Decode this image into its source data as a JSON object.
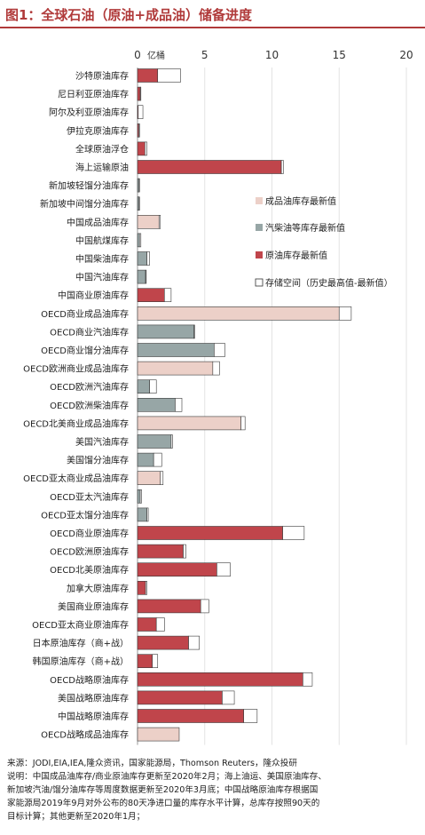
{
  "header": {
    "title": "图1：全球石油（原油+成品油）储备进度"
  },
  "chart_data": {
    "type": "bar",
    "orientation": "horizontal",
    "stacked": true,
    "unit": "亿桶",
    "xlim": [
      0,
      20
    ],
    "xticks": [
      "0",
      "5",
      "10",
      "15",
      "20"
    ],
    "legend_position": "right",
    "categories": [
      "沙特原油库存",
      "尼日利亚原油库存",
      "阿尔及利亚原油库存",
      "伊拉克原油库存",
      "全球原油浮仓",
      "海上运输原油",
      "新加坡轻馏分油库存",
      "新加坡中间馏分油库存",
      "中国成品油库存",
      "中国航煤库存",
      "中国柴油库存",
      "中国汽油库存",
      "中国商业原油库存",
      "OECD商业成品油库存",
      "OECD商业汽油库存",
      "OECD商业馏分油库存",
      "OECD欧洲商业成品油库存",
      "OECD欧洲汽油库存",
      "OECD欧洲柴油库存",
      "OECD北美商业成品油库存",
      "美国汽油库存",
      "美国馏分油库存",
      "OECD亚太商业成品油库存",
      "OECD亚太汽油库存",
      "OECD亚太馏分油库存",
      "OECD商业原油库存",
      "OECD欧洲原油库存",
      "OECD北美原油库存",
      "加拿大原油库存",
      "美国商业原油库存",
      "OECD亚太商业原油库存",
      "日本原油库存（商+战）",
      "韩国原油库存（商+战）",
      "OECD战略原油库存",
      "美国战略原油库存",
      "中国战略原油库存",
      "OECD战略成品油库存"
    ],
    "kinds": [
      "crude",
      "crude",
      "crude",
      "crude",
      "crude",
      "crude",
      "diesel",
      "diesel",
      "product",
      "diesel",
      "diesel",
      "diesel",
      "crude",
      "product",
      "diesel",
      "diesel",
      "product",
      "diesel",
      "diesel",
      "product",
      "diesel",
      "diesel",
      "product",
      "diesel",
      "diesel",
      "crude",
      "crude",
      "crude",
      "crude",
      "crude",
      "crude",
      "crude",
      "crude",
      "crude",
      "crude",
      "crude",
      "product"
    ],
    "series": [
      {
        "key": "latest",
        "values": [
          1.5,
          0.2,
          0.05,
          0.1,
          0.55,
          10.7,
          0.1,
          0.1,
          1.6,
          0.15,
          0.7,
          0.6,
          2.0,
          15.0,
          4.2,
          5.7,
          5.6,
          0.9,
          2.8,
          7.7,
          2.5,
          1.2,
          1.7,
          0.2,
          0.7,
          10.8,
          3.4,
          5.9,
          0.6,
          4.7,
          1.4,
          3.8,
          1.1,
          12.3,
          6.3,
          7.9,
          3.1
        ]
      },
      {
        "key": "space",
        "values": [
          1.7,
          0.05,
          0.35,
          0.05,
          0.15,
          0.15,
          0.05,
          0.05,
          0.1,
          0.1,
          0.2,
          0.05,
          0.5,
          0.9,
          0.05,
          0.8,
          0.5,
          0.5,
          0.5,
          0.3,
          0.1,
          0.6,
          0.2,
          0.1,
          0.1,
          1.6,
          0.2,
          1.0,
          0.1,
          0.6,
          0.6,
          0.8,
          0.4,
          0.7,
          0.9,
          1.0,
          0.0
        ]
      }
    ],
    "legend": [
      {
        "key": "product",
        "label": "成品油库存最新值",
        "color": "#ecd0c8"
      },
      {
        "key": "diesel",
        "label": "汽柴油等库存最新值",
        "color": "#97a6a6"
      },
      {
        "key": "crude",
        "label": "原油库存最新值",
        "color": "#c0454b"
      },
      {
        "key": "space",
        "label": "存储空间（历史最高值-最新值）",
        "color": "#ffffff"
      }
    ]
  },
  "notes": {
    "lines": [
      "来源：JODI,EIA,IEA,隆众资讯，国家能源局，Thomson Reuters，隆众投研",
      "说明：中国成品油库存/商业原油库存更新至2020年2月；海上油运、美国原油库存、",
      "新加坡汽油/馏分油库存等周度数据更新至2020年3月底；中国战略原油库存根据国",
      "家能源局2019年9月对外公布的80天净进口量的库存水平计算，总库存按照90天的",
      "目标计算；其他更新至2020年1月；"
    ]
  }
}
